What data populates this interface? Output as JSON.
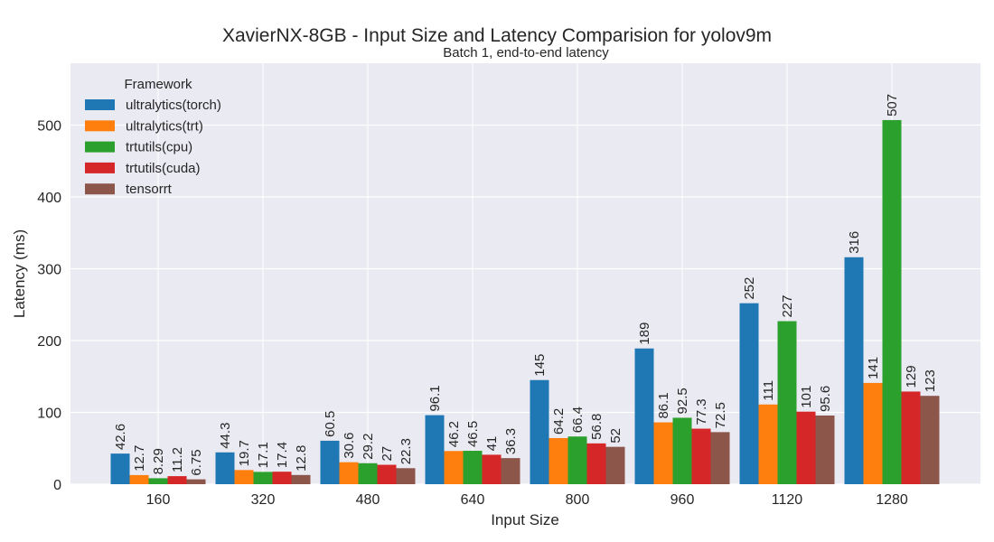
{
  "chart_data": {
    "type": "bar",
    "title": "XavierNX-8GB - Input Size and Latency Comparision for yolov9m",
    "subtitle": "Batch 1, end-to-end latency",
    "xlabel": "Input Size",
    "ylabel": "Latency (ms)",
    "ylim": [
      0,
      580
    ],
    "yticks": [
      0,
      100,
      200,
      300,
      400,
      500
    ],
    "grid": true,
    "legend": {
      "title": "Framework",
      "placement": "top-left"
    },
    "categories": [
      "160",
      "320",
      "480",
      "640",
      "800",
      "960",
      "1120",
      "1280"
    ],
    "series": [
      {
        "name": "ultralytics(torch)",
        "color": "#1f77b4",
        "values": [
          42.6,
          44.3,
          60.5,
          96.1,
          145,
          189,
          252,
          316
        ],
        "labels": [
          "42.6",
          "44.3",
          "60.5",
          "96.1",
          "145",
          "189",
          "252",
          "316"
        ]
      },
      {
        "name": "ultralytics(trt)",
        "color": "#ff7f0e",
        "values": [
          12.7,
          19.7,
          30.6,
          46.2,
          64.2,
          86.1,
          111,
          141
        ],
        "labels": [
          "12.7",
          "19.7",
          "30.6",
          "46.2",
          "64.2",
          "86.1",
          "111",
          "141"
        ]
      },
      {
        "name": "trtutils(cpu)",
        "color": "#2ca02c",
        "values": [
          8.29,
          17.1,
          29.2,
          46.5,
          66.4,
          92.5,
          227,
          507
        ],
        "labels": [
          "8.29",
          "17.1",
          "29.2",
          "46.5",
          "66.4",
          "92.5",
          "227",
          "507"
        ]
      },
      {
        "name": "trtutils(cuda)",
        "color": "#d62728",
        "values": [
          11.2,
          17.4,
          27,
          41,
          56.8,
          77.3,
          101,
          129
        ],
        "labels": [
          "11.2",
          "17.4",
          "27",
          "41",
          "56.8",
          "77.3",
          "101",
          "129"
        ]
      },
      {
        "name": "tensorrt",
        "color": "#8c564b",
        "values": [
          6.75,
          12.8,
          22.3,
          36.3,
          52,
          72.5,
          95.6,
          123
        ],
        "labels": [
          "6.75",
          "12.8",
          "22.3",
          "36.3",
          "52",
          "72.5",
          "95.6",
          "123"
        ]
      }
    ]
  }
}
